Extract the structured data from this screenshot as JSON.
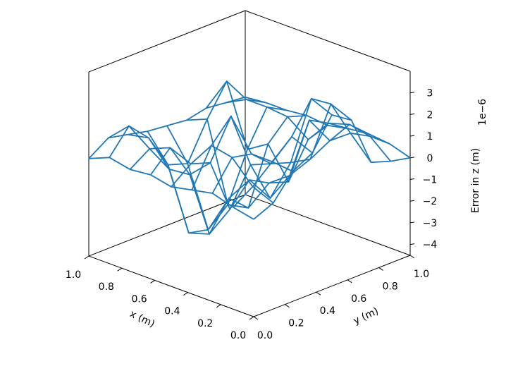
{
  "chart_data": {
    "type": "3d-wireframe",
    "series_color": "#1f77b4",
    "xlabel": "x (m)",
    "ylabel": "y (m)",
    "zlabel": "Error in z (m)",
    "z_offset_label": "1e−6",
    "xlim": [
      0.0,
      1.0
    ],
    "ylim": [
      0.0,
      1.0
    ],
    "zlim": [
      -4.5,
      4.0
    ],
    "x_ticks": [
      {
        "value": 1.0,
        "label": "1.0"
      },
      {
        "value": 0.8,
        "label": "0.8"
      },
      {
        "value": 0.6,
        "label": "0.6"
      },
      {
        "value": 0.4,
        "label": "0.4"
      },
      {
        "value": 0.2,
        "label": "0.2"
      },
      {
        "value": 0.0,
        "label": "0.0"
      }
    ],
    "y_ticks": [
      {
        "value": 1.0,
        "label": "1.0"
      },
      {
        "value": 0.8,
        "label": "0.8"
      },
      {
        "value": 0.6,
        "label": "0.6"
      },
      {
        "value": 0.4,
        "label": "0.4"
      },
      {
        "value": 0.2,
        "label": "0.2"
      },
      {
        "value": 0.0,
        "label": "0.0"
      }
    ],
    "z_ticks": [
      {
        "value": 3,
        "label": "3"
      },
      {
        "value": 2,
        "label": "2"
      },
      {
        "value": 1,
        "label": "1"
      },
      {
        "value": 0,
        "label": "0"
      },
      {
        "value": -1,
        "label": "−1"
      },
      {
        "value": -2,
        "label": "−2"
      },
      {
        "value": -3,
        "label": "−3"
      },
      {
        "value": -4,
        "label": "−4"
      }
    ],
    "grid_x": [
      0.0,
      0.125,
      0.25,
      0.375,
      0.5,
      0.625,
      0.75,
      0.875,
      1.0
    ],
    "grid_y": [
      0.0,
      0.125,
      0.25,
      0.375,
      0.5,
      0.625,
      0.75,
      0.875,
      1.0
    ],
    "z_values_1e-6": [
      [
        0.0,
        0.4,
        1.5,
        2.0,
        3.4,
        2.8,
        0.5,
        0.2,
        0.0
      ],
      [
        0.2,
        0.8,
        1.6,
        2.4,
        3.8,
        3.2,
        1.5,
        1.0,
        0.3
      ],
      [
        0.5,
        1.8,
        1.6,
        0.8,
        0.5,
        0.3,
        0.8,
        1.2,
        0.4
      ],
      [
        0.3,
        2.0,
        3.0,
        0.4,
        -1.5,
        -0.8,
        1.4,
        0.9,
        0.3
      ],
      [
        0.1,
        0.8,
        0.5,
        -2.0,
        -1.0,
        -1.5,
        -1.8,
        -0.2,
        0.1
      ],
      [
        0.3,
        1.2,
        -0.4,
        -3.5,
        -2.2,
        -3.0,
        -0.4,
        0.5,
        0.2
      ],
      [
        0.2,
        0.8,
        -0.5,
        -3.8,
        -4.0,
        -3.2,
        -1.0,
        0.6,
        0.1
      ],
      [
        0.4,
        1.5,
        0.6,
        -1.0,
        -1.3,
        0.4,
        1.8,
        0.6,
        0.1
      ],
      [
        0.0,
        0.6,
        0.4,
        0.2,
        0.1,
        0.0,
        0.2,
        0.1,
        0.0
      ]
    ]
  }
}
